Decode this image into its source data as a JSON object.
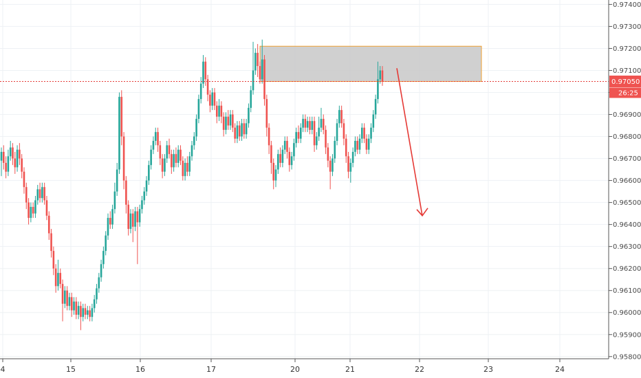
{
  "chart_data": {
    "type": "candlestick",
    "y_axis": {
      "ylim": [
        0.9579,
        0.9742
      ],
      "ticks": [
        "0.97400",
        "0.97300",
        "0.97200",
        "0.97100",
        "0.97000",
        "0.96900",
        "0.96800",
        "0.96700",
        "0.96600",
        "0.96500",
        "0.96400",
        "0.96300",
        "0.96200",
        "0.96100",
        "0.96000",
        "0.95900",
        "0.95800"
      ],
      "current_price": "0.97050",
      "countdown": "26:25"
    },
    "x_axis": {
      "ticks": [
        "4",
        "15",
        "16",
        "17",
        "20",
        "21",
        "22",
        "23",
        "24"
      ]
    },
    "colors": {
      "up": "#26a69a",
      "down": "#ef5350",
      "price_line": "#e53935",
      "zone_fill": "#c8c8c8",
      "zone_border": "#f0a030",
      "arrow": "#e53935",
      "grid": "#eef1f4"
    },
    "resistance_zone": {
      "low": 0.9705,
      "high": 0.9721
    },
    "projection_arrow": {
      "from": 0.9711,
      "to": 0.9644
    },
    "candles": [
      [
        0.9669,
        0.9673,
        0.9662,
        0.9675
      ],
      [
        0.9673,
        0.9668,
        0.9665,
        0.9676
      ],
      [
        0.9668,
        0.9664,
        0.9661,
        0.9671
      ],
      [
        0.9664,
        0.9671,
        0.9662,
        0.9674
      ],
      [
        0.9671,
        0.9675,
        0.9669,
        0.9678
      ],
      [
        0.9675,
        0.967,
        0.9667,
        0.9677
      ],
      [
        0.967,
        0.9666,
        0.9663,
        0.9673
      ],
      [
        0.9666,
        0.9674,
        0.9664,
        0.9676
      ],
      [
        0.9674,
        0.967,
        0.9667,
        0.9677
      ],
      [
        0.967,
        0.9664,
        0.9661,
        0.9672
      ],
      [
        0.9664,
        0.9657,
        0.9654,
        0.9666
      ],
      [
        0.9657,
        0.965,
        0.9647,
        0.9659
      ],
      [
        0.965,
        0.9643,
        0.964,
        0.9652
      ],
      [
        0.9643,
        0.9648,
        0.9641,
        0.965
      ],
      [
        0.9648,
        0.9645,
        0.9643,
        0.965
      ],
      [
        0.9645,
        0.9651,
        0.9643,
        0.9653
      ],
      [
        0.9651,
        0.9656,
        0.9649,
        0.9658
      ],
      [
        0.9656,
        0.9652,
        0.965,
        0.9659
      ],
      [
        0.9652,
        0.9657,
        0.965,
        0.9659
      ],
      [
        0.9657,
        0.9651,
        0.9649,
        0.9659
      ],
      [
        0.9651,
        0.9644,
        0.9642,
        0.9653
      ],
      [
        0.9644,
        0.9636,
        0.9633,
        0.9646
      ],
      [
        0.9636,
        0.9628,
        0.9625,
        0.9638
      ],
      [
        0.9628,
        0.962,
        0.9617,
        0.963
      ],
      [
        0.962,
        0.9612,
        0.9609,
        0.9622
      ],
      [
        0.9612,
        0.9618,
        0.961,
        0.9624
      ],
      [
        0.9618,
        0.9613,
        0.9611,
        0.962
      ],
      [
        0.9613,
        0.9604,
        0.9596,
        0.9615
      ],
      [
        0.9604,
        0.961,
        0.9602,
        0.9612
      ],
      [
        0.961,
        0.9603,
        0.9601,
        0.9612
      ],
      [
        0.9603,
        0.9607,
        0.9601,
        0.9609
      ],
      [
        0.9607,
        0.9601,
        0.9598,
        0.9609
      ],
      [
        0.9601,
        0.9605,
        0.9599,
        0.9607
      ],
      [
        0.9605,
        0.9599,
        0.9597,
        0.9607
      ],
      [
        0.9599,
        0.9603,
        0.9597,
        0.9605
      ],
      [
        0.9603,
        0.9598,
        0.9592,
        0.9605
      ],
      [
        0.9598,
        0.9602,
        0.9596,
        0.9604
      ],
      [
        0.9602,
        0.9599,
        0.9597,
        0.9604
      ],
      [
        0.9599,
        0.9601,
        0.9597,
        0.9603
      ],
      [
        0.9601,
        0.9598,
        0.9596,
        0.9603
      ],
      [
        0.9598,
        0.9602,
        0.9596,
        0.9604
      ],
      [
        0.9602,
        0.9606,
        0.96,
        0.9608
      ],
      [
        0.9606,
        0.9611,
        0.9604,
        0.9613
      ],
      [
        0.9611,
        0.9616,
        0.9609,
        0.9618
      ],
      [
        0.9616,
        0.9622,
        0.9614,
        0.9624
      ],
      [
        0.9622,
        0.9628,
        0.962,
        0.963
      ],
      [
        0.9628,
        0.9635,
        0.9626,
        0.9637
      ],
      [
        0.9635,
        0.9643,
        0.9633,
        0.9645
      ],
      [
        0.9643,
        0.964,
        0.9638,
        0.9646
      ],
      [
        0.964,
        0.9647,
        0.9638,
        0.9649
      ],
      [
        0.9647,
        0.9655,
        0.9645,
        0.9659
      ],
      [
        0.9655,
        0.9665,
        0.9653,
        0.9668
      ],
      [
        0.9665,
        0.9698,
        0.9663,
        0.97
      ],
      [
        0.9698,
        0.968,
        0.9676,
        0.9701
      ],
      [
        0.968,
        0.966,
        0.9656,
        0.9682
      ],
      [
        0.966,
        0.9649,
        0.9645,
        0.9662
      ],
      [
        0.9649,
        0.9638,
        0.9635,
        0.9651
      ],
      [
        0.9638,
        0.9645,
        0.9636,
        0.9647
      ],
      [
        0.9645,
        0.9639,
        0.9632,
        0.9647
      ],
      [
        0.9639,
        0.9646,
        0.9637,
        0.9648
      ],
      [
        0.9646,
        0.9641,
        0.9622,
        0.9648
      ],
      [
        0.9641,
        0.9647,
        0.9639,
        0.9649
      ],
      [
        0.9647,
        0.9651,
        0.9645,
        0.9653
      ],
      [
        0.9651,
        0.9655,
        0.9649,
        0.9657
      ],
      [
        0.9655,
        0.966,
        0.9653,
        0.9662
      ],
      [
        0.966,
        0.9667,
        0.9658,
        0.9669
      ],
      [
        0.9667,
        0.9674,
        0.9665,
        0.9676
      ],
      [
        0.9674,
        0.9678,
        0.9672,
        0.968
      ],
      [
        0.9678,
        0.9682,
        0.9676,
        0.9684
      ],
      [
        0.9682,
        0.9676,
        0.9673,
        0.9684
      ],
      [
        0.9676,
        0.967,
        0.9667,
        0.9678
      ],
      [
        0.967,
        0.9664,
        0.9661,
        0.9672
      ],
      [
        0.9664,
        0.967,
        0.9662,
        0.9672
      ],
      [
        0.967,
        0.9676,
        0.9668,
        0.9678
      ],
      [
        0.9676,
        0.9672,
        0.967,
        0.9679
      ],
      [
        0.9672,
        0.9666,
        0.9663,
        0.9674
      ],
      [
        0.9666,
        0.9672,
        0.9664,
        0.9674
      ],
      [
        0.9672,
        0.9668,
        0.9666,
        0.9675
      ],
      [
        0.9668,
        0.9674,
        0.9666,
        0.9676
      ],
      [
        0.9674,
        0.9669,
        0.9667,
        0.9676
      ],
      [
        0.9669,
        0.9662,
        0.966,
        0.9671
      ],
      [
        0.9662,
        0.9668,
        0.966,
        0.967
      ],
      [
        0.9668,
        0.9664,
        0.9662,
        0.9671
      ],
      [
        0.9664,
        0.9671,
        0.9662,
        0.9673
      ],
      [
        0.9671,
        0.9676,
        0.9669,
        0.9678
      ],
      [
        0.9676,
        0.968,
        0.9674,
        0.9682
      ],
      [
        0.968,
        0.9688,
        0.9678,
        0.969
      ],
      [
        0.9688,
        0.9697,
        0.9686,
        0.9699
      ],
      [
        0.9697,
        0.9704,
        0.9695,
        0.9707
      ],
      [
        0.9704,
        0.9714,
        0.9702,
        0.9717
      ],
      [
        0.9714,
        0.9706,
        0.9703,
        0.9716
      ],
      [
        0.9706,
        0.9699,
        0.9696,
        0.9708
      ],
      [
        0.9699,
        0.9694,
        0.9691,
        0.9701
      ],
      [
        0.9694,
        0.97,
        0.9692,
        0.9702
      ],
      [
        0.97,
        0.9694,
        0.9692,
        0.9702
      ],
      [
        0.9694,
        0.9689,
        0.9686,
        0.9696
      ],
      [
        0.9689,
        0.9694,
        0.9687,
        0.9697
      ],
      [
        0.9694,
        0.9689,
        0.9686,
        0.9696
      ],
      [
        0.9689,
        0.9683,
        0.968,
        0.9691
      ],
      [
        0.9683,
        0.9689,
        0.9681,
        0.9691
      ],
      [
        0.9689,
        0.9685,
        0.9683,
        0.9692
      ],
      [
        0.9685,
        0.969,
        0.9683,
        0.9692
      ],
      [
        0.969,
        0.9684,
        0.9682,
        0.9692
      ],
      [
        0.9684,
        0.9679,
        0.9677,
        0.9686
      ],
      [
        0.9679,
        0.9685,
        0.9677,
        0.9687
      ],
      [
        0.9685,
        0.968,
        0.9678,
        0.9687
      ],
      [
        0.968,
        0.9686,
        0.9678,
        0.9688
      ],
      [
        0.9686,
        0.9681,
        0.9679,
        0.9688
      ],
      [
        0.9681,
        0.9686,
        0.9679,
        0.9688
      ],
      [
        0.9686,
        0.9693,
        0.9684,
        0.9695
      ],
      [
        0.9693,
        0.9701,
        0.9691,
        0.9703
      ],
      [
        0.9701,
        0.971,
        0.9699,
        0.9723
      ],
      [
        0.971,
        0.9718,
        0.9708,
        0.972
      ],
      [
        0.9718,
        0.9712,
        0.9707,
        0.9722
      ],
      [
        0.9712,
        0.9706,
        0.9704,
        0.9714
      ],
      [
        0.9706,
        0.9715,
        0.9704,
        0.9724
      ],
      [
        0.9715,
        0.9697,
        0.9694,
        0.9717
      ],
      [
        0.9697,
        0.9684,
        0.968,
        0.9699
      ],
      [
        0.9684,
        0.9676,
        0.9672,
        0.9686
      ],
      [
        0.9676,
        0.9668,
        0.9663,
        0.9678
      ],
      [
        0.9668,
        0.966,
        0.9656,
        0.967
      ],
      [
        0.966,
        0.9665,
        0.9657,
        0.9667
      ],
      [
        0.9665,
        0.9672,
        0.9663,
        0.9674
      ],
      [
        0.9672,
        0.9668,
        0.9666,
        0.9675
      ],
      [
        0.9668,
        0.9674,
        0.9666,
        0.9676
      ],
      [
        0.9674,
        0.9678,
        0.9672,
        0.968
      ],
      [
        0.9678,
        0.9673,
        0.967,
        0.968
      ],
      [
        0.9673,
        0.9667,
        0.9664,
        0.9675
      ],
      [
        0.9667,
        0.9671,
        0.9665,
        0.9673
      ],
      [
        0.9671,
        0.9677,
        0.9669,
        0.9679
      ],
      [
        0.9677,
        0.9682,
        0.9675,
        0.9684
      ],
      [
        0.9682,
        0.9679,
        0.9677,
        0.9685
      ],
      [
        0.9679,
        0.9684,
        0.9677,
        0.9686
      ],
      [
        0.9684,
        0.9688,
        0.9682,
        0.969
      ],
      [
        0.9688,
        0.9684,
        0.9682,
        0.969
      ],
      [
        0.9684,
        0.9687,
        0.9682,
        0.9689
      ],
      [
        0.9687,
        0.9683,
        0.9681,
        0.9689
      ],
      [
        0.9683,
        0.9687,
        0.9681,
        0.9689
      ],
      [
        0.9687,
        0.9676,
        0.9673,
        0.9689
      ],
      [
        0.9676,
        0.968,
        0.9674,
        0.9682
      ],
      [
        0.968,
        0.9684,
        0.9678,
        0.9689
      ],
      [
        0.9684,
        0.9688,
        0.9682,
        0.9693
      ],
      [
        0.9688,
        0.9683,
        0.9681,
        0.969
      ],
      [
        0.9683,
        0.9675,
        0.9672,
        0.9685
      ],
      [
        0.9675,
        0.9669,
        0.9666,
        0.9677
      ],
      [
        0.9669,
        0.9664,
        0.9656,
        0.9671
      ],
      [
        0.9664,
        0.967,
        0.9662,
        0.9672
      ],
      [
        0.967,
        0.9678,
        0.9668,
        0.968
      ],
      [
        0.9678,
        0.9686,
        0.9676,
        0.9688
      ],
      [
        0.9686,
        0.9692,
        0.9684,
        0.9694
      ],
      [
        0.9692,
        0.9686,
        0.9684,
        0.9694
      ],
      [
        0.9686,
        0.9679,
        0.9676,
        0.9688
      ],
      [
        0.9679,
        0.9671,
        0.9668,
        0.9681
      ],
      [
        0.9671,
        0.9664,
        0.9661,
        0.9673
      ],
      [
        0.9664,
        0.9668,
        0.9659,
        0.967
      ],
      [
        0.9668,
        0.9673,
        0.9666,
        0.9675
      ],
      [
        0.9673,
        0.9678,
        0.9671,
        0.968
      ],
      [
        0.9678,
        0.9674,
        0.9672,
        0.968
      ],
      [
        0.9674,
        0.9679,
        0.9672,
        0.9681
      ],
      [
        0.9679,
        0.9684,
        0.9677,
        0.9686
      ],
      [
        0.9684,
        0.9679,
        0.9677,
        0.9686
      ],
      [
        0.9679,
        0.9674,
        0.9672,
        0.9681
      ],
      [
        0.9674,
        0.9679,
        0.9672,
        0.9681
      ],
      [
        0.9679,
        0.9684,
        0.9677,
        0.9686
      ],
      [
        0.9684,
        0.969,
        0.9682,
        0.9692
      ],
      [
        0.969,
        0.9697,
        0.9688,
        0.9699
      ],
      [
        0.9697,
        0.9706,
        0.9695,
        0.9714
      ],
      [
        0.9706,
        0.971,
        0.9704,
        0.9712
      ],
      [
        0.971,
        0.9705,
        0.9703,
        0.9712
      ]
    ]
  }
}
